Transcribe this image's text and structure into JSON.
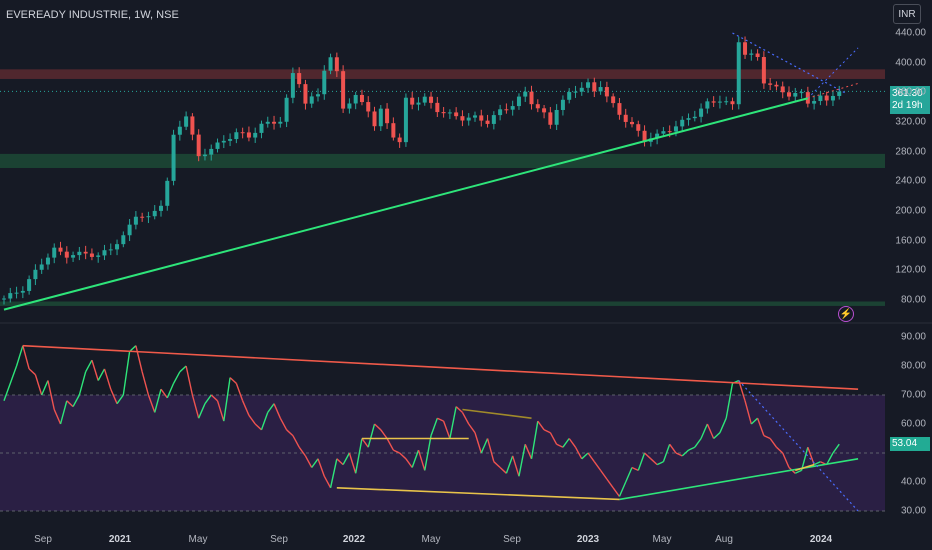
{
  "header": {
    "title": "EVEREADY INDUSTRIE, 1W, NSE",
    "currency_button": "INR"
  },
  "price_badge": {
    "price": "361.30",
    "countdown": "2d 19h"
  },
  "rsi_badge": {
    "value": "53.04"
  },
  "icons": {
    "flash": "lightning-bolt-icon"
  },
  "colors": {
    "bull": "#26a69a",
    "bear": "#ef5350",
    "trend": "#2ee57a",
    "resistance_zone": "#5a2a30",
    "support_zone": "#1c4a36",
    "rsi_band": "#2a1f44",
    "downtrend": "#4a6cff",
    "rsi_top_line": "#f05a4a",
    "divergence_line": "#e8c34a"
  },
  "chart_data": [
    {
      "type": "candlestick",
      "title": "EVEREADY INDUSTRIE, 1W, NSE",
      "y_ticks": [
        440,
        400,
        360,
        320,
        280,
        240,
        200,
        160,
        120,
        80
      ],
      "ylim": [
        66,
        452
      ],
      "x_ticks": [
        "Sep",
        "2021",
        "May",
        "Sep",
        "2022",
        "May",
        "Sep",
        "2023",
        "May",
        "Aug",
        "2024"
      ],
      "last_price": 361.3,
      "zones": [
        {
          "name": "resistance",
          "from": 378,
          "to": 391
        },
        {
          "name": "support",
          "from": 258,
          "to": 277
        },
        {
          "name": "lower support",
          "from": 72,
          "to": 78
        }
      ],
      "close_path": [
        [
          0,
          82
        ],
        [
          3,
          95
        ],
        [
          6,
          130
        ],
        [
          8,
          148
        ],
        [
          10,
          140
        ],
        [
          13,
          143
        ],
        [
          15,
          139
        ],
        [
          17,
          150
        ],
        [
          19,
          165
        ],
        [
          21,
          195
        ],
        [
          23,
          190
        ],
        [
          25,
          210
        ],
        [
          26,
          240
        ],
        [
          27,
          300
        ],
        [
          29,
          330
        ],
        [
          31,
          272
        ],
        [
          33,
          285
        ],
        [
          35,
          294
        ],
        [
          37,
          306
        ],
        [
          39,
          300
        ],
        [
          41,
          316
        ],
        [
          43,
          320
        ],
        [
          44,
          322
        ],
        [
          45,
          350
        ],
        [
          46,
          385
        ],
        [
          47,
          374
        ],
        [
          48,
          345
        ],
        [
          50,
          358
        ],
        [
          51,
          392
        ],
        [
          52,
          406
        ],
        [
          53,
          386
        ],
        [
          54,
          340
        ],
        [
          56,
          354
        ],
        [
          58,
          337
        ],
        [
          59,
          315
        ],
        [
          60,
          335
        ],
        [
          62,
          302
        ],
        [
          63,
          292
        ],
        [
          64,
          350
        ],
        [
          65,
          345
        ],
        [
          67,
          352
        ],
        [
          69,
          336
        ],
        [
          71,
          330
        ],
        [
          73,
          325
        ],
        [
          75,
          326
        ],
        [
          77,
          320
        ],
        [
          79,
          335
        ],
        [
          81,
          343
        ],
        [
          83,
          360
        ],
        [
          84,
          347
        ],
        [
          86,
          330
        ],
        [
          87,
          317
        ],
        [
          88,
          339
        ],
        [
          90,
          358
        ],
        [
          92,
          368
        ],
        [
          93,
          371
        ],
        [
          94,
          360
        ],
        [
          95,
          370
        ],
        [
          96,
          355
        ],
        [
          98,
          330
        ],
        [
          100,
          316
        ],
        [
          102,
          295
        ],
        [
          103,
          300
        ],
        [
          104,
          302
        ],
        [
          106,
          310
        ],
        [
          108,
          320
        ],
        [
          110,
          330
        ],
        [
          112,
          345
        ],
        [
          114,
          350
        ],
        [
          116,
          342
        ],
        [
          117,
          430
        ],
        [
          118,
          412
        ],
        [
          120,
          407
        ],
        [
          121,
          375
        ],
        [
          123,
          365
        ],
        [
          125,
          357
        ],
        [
          127,
          358
        ],
        [
          128,
          347
        ],
        [
          130,
          353
        ],
        [
          131,
          348
        ],
        [
          132,
          358
        ],
        [
          133,
          361.3
        ]
      ],
      "trendline": [
        [
          0,
          67
        ],
        [
          128,
          352
        ]
      ],
      "downtrend_line": [
        [
          116,
          440
        ],
        [
          134,
          359
        ]
      ]
    },
    {
      "type": "line",
      "name": "RSI",
      "y_ticks": [
        90,
        80,
        70,
        60,
        50,
        40,
        30
      ],
      "ylim": [
        28,
        94
      ],
      "band": [
        30,
        70
      ],
      "last_value": 53.04,
      "values": [
        [
          0,
          68
        ],
        [
          2,
          80
        ],
        [
          3,
          87
        ],
        [
          4,
          79
        ],
        [
          5,
          77
        ],
        [
          6,
          70
        ],
        [
          7,
          75
        ],
        [
          8,
          65
        ],
        [
          9,
          60
        ],
        [
          10,
          68
        ],
        [
          11,
          66
        ],
        [
          12,
          70
        ],
        [
          13,
          78
        ],
        [
          14,
          82
        ],
        [
          15,
          75
        ],
        [
          16,
          79
        ],
        [
          17,
          72
        ],
        [
          18,
          67
        ],
        [
          19,
          70
        ],
        [
          20,
          85
        ],
        [
          21,
          87
        ],
        [
          22,
          78
        ],
        [
          23,
          70
        ],
        [
          24,
          64
        ],
        [
          25,
          72
        ],
        [
          26,
          69
        ],
        [
          27,
          74
        ],
        [
          28,
          78
        ],
        [
          29,
          80
        ],
        [
          30,
          70
        ],
        [
          31,
          62
        ],
        [
          32,
          67
        ],
        [
          33,
          70
        ],
        [
          34,
          68
        ],
        [
          35,
          61
        ],
        [
          36,
          76
        ],
        [
          37,
          74
        ],
        [
          38,
          68
        ],
        [
          39,
          63
        ],
        [
          40,
          60
        ],
        [
          41,
          58
        ],
        [
          42,
          64
        ],
        [
          43,
          67
        ],
        [
          44,
          62
        ],
        [
          45,
          58
        ],
        [
          46,
          56
        ],
        [
          47,
          52
        ],
        [
          48,
          49
        ],
        [
          49,
          45
        ],
        [
          50,
          48
        ],
        [
          51,
          42
        ],
        [
          52,
          38
        ],
        [
          53,
          48
        ],
        [
          54,
          46
        ],
        [
          55,
          50
        ],
        [
          56,
          43
        ],
        [
          57,
          55
        ],
        [
          58,
          52
        ],
        [
          59,
          60
        ],
        [
          60,
          58
        ],
        [
          61,
          55
        ],
        [
          62,
          51
        ],
        [
          63,
          50
        ],
        [
          64,
          48
        ],
        [
          65,
          45
        ],
        [
          66,
          51
        ],
        [
          67,
          44
        ],
        [
          68,
          56
        ],
        [
          69,
          62
        ],
        [
          70,
          61
        ],
        [
          71,
          55
        ],
        [
          72,
          66
        ],
        [
          73,
          64
        ],
        [
          74,
          60
        ],
        [
          75,
          57
        ],
        [
          76,
          50
        ],
        [
          77,
          55
        ],
        [
          78,
          47
        ],
        [
          79,
          45
        ],
        [
          80,
          43
        ],
        [
          81,
          49
        ],
        [
          82,
          42
        ],
        [
          83,
          53
        ],
        [
          84,
          48
        ],
        [
          85,
          61
        ],
        [
          86,
          58
        ],
        [
          87,
          57
        ],
        [
          88,
          53
        ],
        [
          89,
          52
        ],
        [
          90,
          55
        ],
        [
          91,
          52
        ],
        [
          92,
          48
        ],
        [
          93,
          50
        ],
        [
          94,
          47
        ],
        [
          95,
          44
        ],
        [
          96,
          41
        ],
        [
          97,
          38
        ],
        [
          98,
          35
        ],
        [
          99,
          40
        ],
        [
          100,
          45
        ],
        [
          101,
          44
        ],
        [
          102,
          50
        ],
        [
          103,
          48
        ],
        [
          104,
          46
        ],
        [
          105,
          47
        ],
        [
          106,
          53
        ],
        [
          107,
          50
        ],
        [
          108,
          49
        ],
        [
          109,
          51
        ],
        [
          110,
          52
        ],
        [
          111,
          55
        ],
        [
          112,
          60
        ],
        [
          113,
          55
        ],
        [
          114,
          57
        ],
        [
          115,
          62
        ],
        [
          116,
          74
        ],
        [
          117,
          75
        ],
        [
          118,
          68
        ],
        [
          119,
          60
        ],
        [
          120,
          62
        ],
        [
          121,
          56
        ],
        [
          122,
          55
        ],
        [
          123,
          52
        ],
        [
          124,
          50
        ],
        [
          125,
          45
        ],
        [
          126,
          43
        ],
        [
          127,
          44
        ],
        [
          128,
          52
        ],
        [
          129,
          46
        ],
        [
          130,
          47
        ],
        [
          131,
          46
        ],
        [
          132,
          50
        ],
        [
          133,
          53.04
        ]
      ],
      "top_trendline": [
        [
          3,
          87
        ],
        [
          136,
          72
        ]
      ],
      "bottom_trendline": [
        [
          98,
          34
        ],
        [
          136,
          48
        ]
      ],
      "divergence_segments": [
        [
          [
            53,
            38
          ],
          [
            98,
            34
          ]
        ],
        [
          [
            57,
            55
          ],
          [
            74,
            55
          ]
        ],
        [
          [
            73,
            65
          ],
          [
            84,
            62
          ]
        ],
        [
          [
            126,
            44
          ],
          [
            129,
            46
          ]
        ]
      ],
      "downtrend_dotted": [
        [
          117,
          75
        ],
        [
          136,
          30
        ]
      ]
    }
  ]
}
